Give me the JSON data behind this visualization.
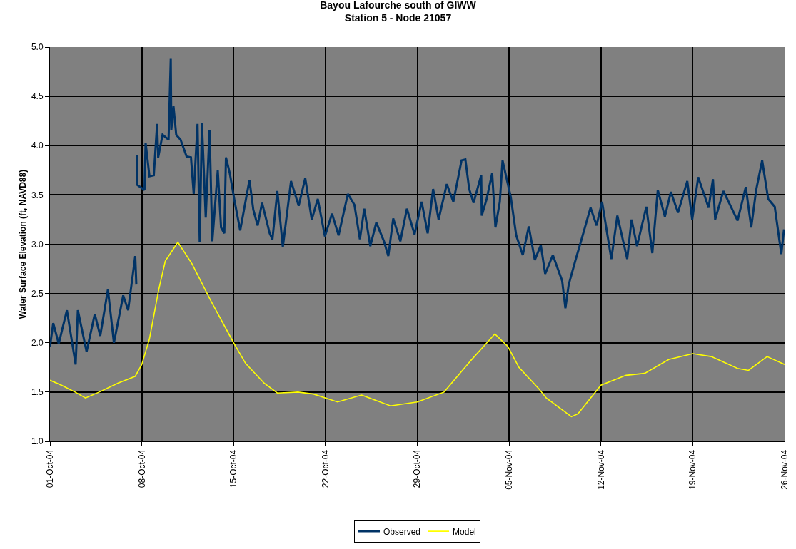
{
  "chart_data": {
    "type": "line",
    "title": "Bayou Lafourche south of GIWW",
    "subtitle": "Station 5 - Node 21057",
    "ylabel": "Water Surface Elevation (ft, NAVD88)",
    "xlim": [
      "--10-01",
      "--11-26"
    ],
    "xticks": [
      {
        "value": "--10-01",
        "label": "01-Oct-04"
      },
      {
        "value": "--10-08",
        "label": "08-Oct-04"
      },
      {
        "value": "--10-15",
        "label": "15-Oct-04"
      },
      {
        "value": "--10-22",
        "label": "22-Oct-04"
      },
      {
        "value": "--10-29",
        "label": "29-Oct-04"
      },
      {
        "value": "--11-05",
        "label": "05-Nov-04"
      },
      {
        "value": "--11-12",
        "label": "12-Nov-04"
      },
      {
        "value": "--11-19",
        "label": "19-Nov-04"
      },
      {
        "value": "--11-26",
        "label": "26-Nov-04"
      }
    ],
    "ylim": [
      1,
      5
    ],
    "yticks": [
      {
        "value": 1,
        "label": "1.0"
      },
      {
        "value": 1.5,
        "label": "1.5"
      },
      {
        "value": 2,
        "label": "2.0"
      },
      {
        "value": 2.5,
        "label": "2.5"
      },
      {
        "value": 3,
        "label": "3.0"
      },
      {
        "value": 3.5,
        "label": "3.5"
      },
      {
        "value": 4,
        "label": "4.0"
      },
      {
        "value": 4.5,
        "label": "4.5"
      },
      {
        "value": 5,
        "label": "5.0"
      }
    ],
    "grid": true,
    "legend": "bottom",
    "marker": "none",
    "line_style": "solid",
    "series": [
      {
        "name": "Observed",
        "color": "#003366",
        "x": [
          "--10-01T00:00",
          "--10-01T06:00",
          "--10-01T16:00",
          "--10-02T07:00",
          "--10-02T23:00",
          "--10-03T03:00",
          "--10-03T19:00",
          "--10-04T10:00",
          "--10-04T20:00",
          "--10-05T10:00",
          "--10-05T21:00",
          "--10-06T14:00",
          "--10-06T23:00",
          "--10-07T12:00",
          "--10-07T14:00",
          "--10-07T14:30",
          "--10-07T15:00",
          "--10-07T16:00",
          "--10-08T05:00",
          "--10-08T07:00",
          "--10-08T14:00",
          "--10-08T22:00",
          "--10-09T04:00",
          "--10-09T06:00",
          "--10-09T14:00",
          "--10-10T01:00",
          "--10-10T05:00",
          "--10-10T06:00",
          "--10-10T10:00",
          "--10-10T15:00",
          "--10-10T23:00",
          "--10-11T10:00",
          "--10-11T18:00",
          "--10-11T23:00",
          "--10-12T06:00",
          "--10-12T10:00",
          "--10-12T14:00",
          "--10-12T21:00",
          "--10-13T04:00",
          "--10-13T09:00",
          "--10-13T19:00",
          "--10-14T01:00",
          "--10-14T07:00",
          "--10-14T10:00",
          "--10-14T17:00",
          "--10-15T02:00",
          "--10-15T12:00",
          "--10-15T19:00",
          "--10-16T05:00",
          "--10-16T12:00",
          "--10-16T20:00",
          "--10-17T04:00",
          "--10-17T18:00",
          "--10-17T23:00",
          "--10-18T08:00",
          "--10-18T18:00",
          "--10-19T09:00",
          "--10-19T23:00",
          "--10-20T11:00",
          "--10-20T23:00",
          "--10-21T10:00",
          "--10-21T23:00",
          "--10-22T12:00",
          "--10-23T00:00",
          "--10-23T17:00",
          "--10-24T05:00",
          "--10-24T15:00",
          "--10-24T23:00",
          "--10-25T10:00",
          "--10-25T21:00",
          "--10-26T11:00",
          "--10-26T19:00",
          "--10-27T04:00",
          "--10-27T17:00",
          "--10-28T05:00",
          "--10-28T19:00",
          "--10-29T08:00",
          "--10-29T19:00",
          "--10-30T05:00",
          "--10-30T15:00",
          "--10-31T06:00",
          "--10-31T18:00",
          "--11-01T09:00",
          "--11-01T16:00",
          "--11-01T23:00",
          "--11-02T07:00",
          "--11-02T21:00",
          "--11-02T22:00",
          "--11-03T07:00",
          "--11-03T17:00",
          "--11-03T23:00",
          "--11-04T07:00",
          "--11-04T12:00",
          "--11-05T03:00",
          "--11-05T13:00",
          "--11-06T01:00",
          "--11-06T12:00",
          "--11-06T23:00",
          "--11-07T10:00",
          "--11-07T18:00",
          "--11-08T08:00",
          "--11-09T01:00",
          "--11-09T07:00",
          "--11-09T13:00",
          "--11-10T01:00",
          "--11-10T11:00",
          "--11-11T05:00",
          "--11-11T16:00",
          "--11-12T02:00",
          "--11-12T19:00",
          "--11-13T06:00",
          "--11-14T00:00",
          "--11-14T08:00",
          "--11-14T18:00",
          "--11-15T11:00",
          "--11-15T22:00",
          "--11-16T08:00",
          "--11-16T21:00",
          "--11-17T08:00",
          "--11-17T21:00",
          "--11-18T14:00",
          "--11-18T23:00",
          "--11-19T10:00",
          "--11-20T05:00",
          "--11-20T13:00",
          "--11-20T17:00",
          "--11-21T08:00",
          "--11-22T10:00",
          "--11-23T01:00",
          "--11-23T11:00",
          "--11-23T20:00",
          "--11-24T07:00",
          "--11-24T18:00",
          "--11-25T06:00",
          "--11-25T18:00",
          "--11-25T23:00"
        ],
        "values": [
          1.96,
          2.2,
          1.99,
          2.33,
          1.78,
          2.33,
          1.91,
          2.29,
          2.07,
          2.54,
          2.0,
          2.48,
          2.33,
          2.88,
          2.59,
          null,
          3.9,
          3.6,
          3.55,
          4.03,
          3.69,
          3.7,
          4.22,
          3.88,
          4.11,
          4.06,
          4.88,
          4.16,
          4.4,
          4.11,
          4.06,
          3.89,
          3.88,
          3.51,
          4.22,
          3.02,
          4.23,
          3.27,
          4.16,
          3.03,
          3.75,
          3.17,
          3.11,
          3.88,
          3.72,
          3.43,
          3.14,
          3.35,
          3.65,
          3.35,
          3.19,
          3.42,
          3.11,
          3.05,
          3.54,
          2.97,
          3.64,
          3.39,
          3.67,
          3.25,
          3.46,
          3.08,
          3.31,
          3.09,
          3.51,
          3.4,
          3.05,
          3.36,
          2.98,
          3.22,
          3.03,
          2.88,
          3.26,
          3.03,
          3.36,
          3.1,
          3.43,
          3.11,
          3.56,
          3.25,
          3.61,
          3.43,
          3.85,
          3.86,
          3.56,
          3.42,
          3.7,
          3.29,
          3.46,
          3.72,
          3.17,
          3.43,
          3.85,
          3.48,
          3.09,
          2.89,
          3.18,
          2.84,
          2.99,
          2.7,
          2.89,
          2.63,
          2.35,
          2.59,
          2.83,
          3.02,
          3.37,
          3.19,
          3.43,
          2.85,
          3.29,
          2.85,
          3.25,
          2.98,
          3.38,
          2.91,
          3.55,
          3.28,
          3.53,
          3.32,
          3.64,
          3.25,
          3.68,
          3.37,
          3.66,
          3.25,
          3.54,
          3.24,
          3.58,
          3.17,
          3.55,
          3.85,
          3.46,
          3.38,
          2.9,
          3.15
        ]
      },
      {
        "name": "Model",
        "color": "#ffff00",
        "x": [
          "--10-01T00:00",
          "--10-01T21:00",
          "--10-02T22:00",
          "--10-03T17:00",
          "--10-04T18:00",
          "--10-06T04:00",
          "--10-07T12:00",
          "--10-08T00:00",
          "--10-08T14:00",
          "--10-09T07:00",
          "--10-09T19:00",
          "--10-10T18:00",
          "--10-11T20:00",
          "--10-13T06:00",
          "--10-15T00:00",
          "--10-15T22:00",
          "--10-17T08:00",
          "--10-18T08:00",
          "--10-19T22:00",
          "--10-21T02:00",
          "--10-22T22:00",
          "--10-24T18:00",
          "--10-26T23:00",
          "--10-29T00:00",
          "--10-31T01:00",
          "--11-02T02:00",
          "--11-03T22:00",
          "--11-04T22:00",
          "--11-05T18:00",
          "--11-07T07:00",
          "--11-07T20:00",
          "--11-09T18:00",
          "--11-10T06:00",
          "--11-12T00:00",
          "--11-13T22:00",
          "--11-15T08:00",
          "--11-17T04:00",
          "--11-19T00:00",
          "--11-20T10:00",
          "--11-22T10:00",
          "--11-23T06:00",
          "--11-24T16:00",
          "--11-26T00:00"
        ],
        "values": [
          1.62,
          1.57,
          1.5,
          1.44,
          1.5,
          1.59,
          1.66,
          1.78,
          2.04,
          2.54,
          2.83,
          3.02,
          2.8,
          2.43,
          2.0,
          1.79,
          1.59,
          1.49,
          1.5,
          1.48,
          1.4,
          1.47,
          1.36,
          1.4,
          1.5,
          1.82,
          2.09,
          1.96,
          1.75,
          1.53,
          1.44,
          1.25,
          1.28,
          1.57,
          1.67,
          1.69,
          1.83,
          1.89,
          1.86,
          1.74,
          1.72,
          1.86,
          1.78
        ]
      }
    ]
  }
}
